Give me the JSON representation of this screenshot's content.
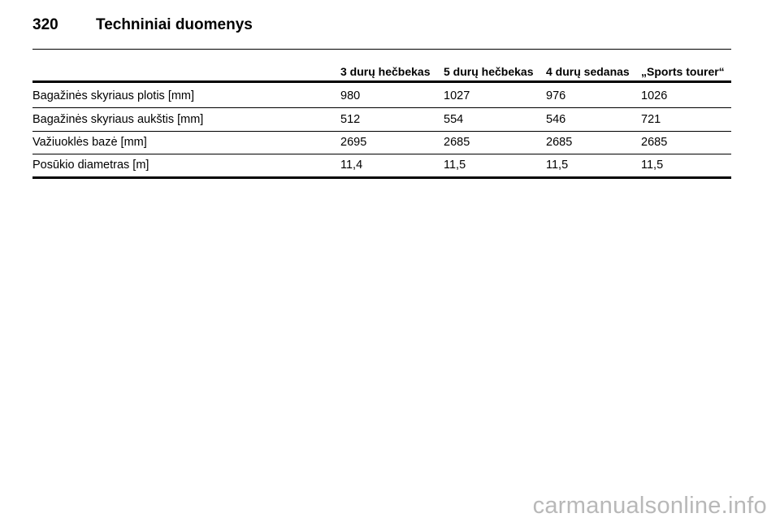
{
  "header": {
    "page_number": "320",
    "title": "Techniniai duomenys"
  },
  "table": {
    "columns": [
      "3 durų hečbekas",
      "5 durų hečbekas",
      "4 durų sedanas",
      "„Sports tourer“"
    ],
    "rows": [
      [
        "Bagažinės skyriaus plotis [mm]",
        "980",
        "1027",
        "976",
        "1026"
      ],
      [
        "Bagažinės skyriaus aukštis [mm]",
        "512",
        "554",
        "546",
        "721"
      ],
      [
        "Važiuoklės bazė [mm]",
        "2695",
        "2685",
        "2685",
        "2685"
      ],
      [
        "Posūkio diametras [m]",
        "11,4",
        "11,5",
        "11,5",
        "11,5"
      ]
    ]
  },
  "watermark": "carmanualsonline.info"
}
